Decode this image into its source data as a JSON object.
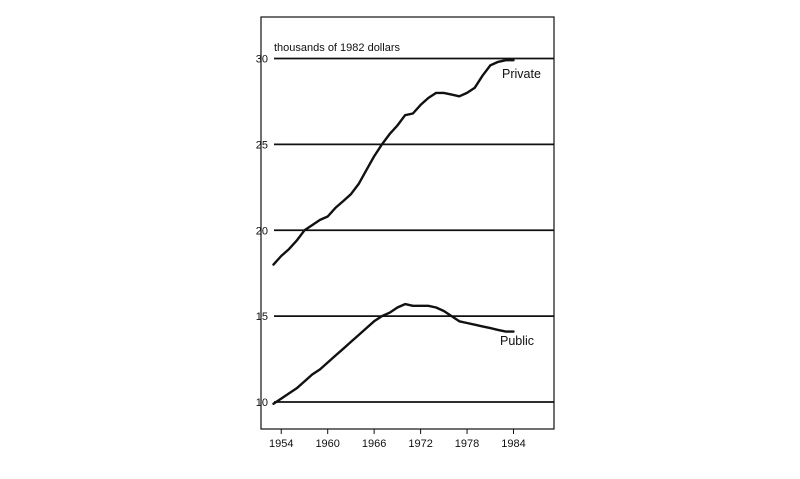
{
  "chart_data": {
    "type": "line",
    "title": "",
    "xlabel": "",
    "ylabel": "thousands of 1982 dollars",
    "xlim": [
      1952.5,
      1989.5
    ],
    "ylim": [
      9.5,
      31
    ],
    "x_ticks": [
      1954,
      1960,
      1966,
      1972,
      1978,
      1984
    ],
    "y_ticks": [
      10,
      15,
      20,
      25,
      30
    ],
    "grid": "horizontal",
    "legend": "inline labels",
    "line_color": "#111111",
    "series": [
      {
        "name": "Private",
        "x": [
          1953,
          1954,
          1955,
          1956,
          1957,
          1958,
          1959,
          1960,
          1961,
          1962,
          1963,
          1964,
          1965,
          1966,
          1967,
          1968,
          1969,
          1970,
          1971,
          1972,
          1973,
          1974,
          1975,
          1976,
          1977,
          1978,
          1979,
          1980,
          1981,
          1982,
          1983,
          1984
        ],
        "values": [
          18.0,
          18.5,
          18.9,
          19.4,
          20.0,
          20.3,
          20.6,
          20.8,
          21.3,
          21.7,
          22.1,
          22.7,
          23.5,
          24.3,
          25.0,
          25.6,
          26.1,
          26.7,
          26.8,
          27.3,
          27.7,
          28.0,
          28.0,
          27.9,
          27.8,
          28.0,
          28.3,
          29.0,
          29.6,
          29.8,
          29.9,
          29.9
        ]
      },
      {
        "name": "Public",
        "x": [
          1953,
          1954,
          1955,
          1956,
          1957,
          1958,
          1959,
          1960,
          1961,
          1962,
          1963,
          1964,
          1965,
          1966,
          1967,
          1968,
          1969,
          1970,
          1971,
          1972,
          1973,
          1974,
          1975,
          1976,
          1977,
          1978,
          1979,
          1980,
          1981,
          1982,
          1983,
          1984
        ],
        "values": [
          9.9,
          10.2,
          10.5,
          10.8,
          11.2,
          11.6,
          11.9,
          12.3,
          12.7,
          13.1,
          13.5,
          13.9,
          14.3,
          14.7,
          15.0,
          15.2,
          15.5,
          15.7,
          15.6,
          15.6,
          15.6,
          15.5,
          15.3,
          15.0,
          14.7,
          14.6,
          14.5,
          14.4,
          14.3,
          14.2,
          14.1,
          14.1
        ]
      }
    ]
  }
}
